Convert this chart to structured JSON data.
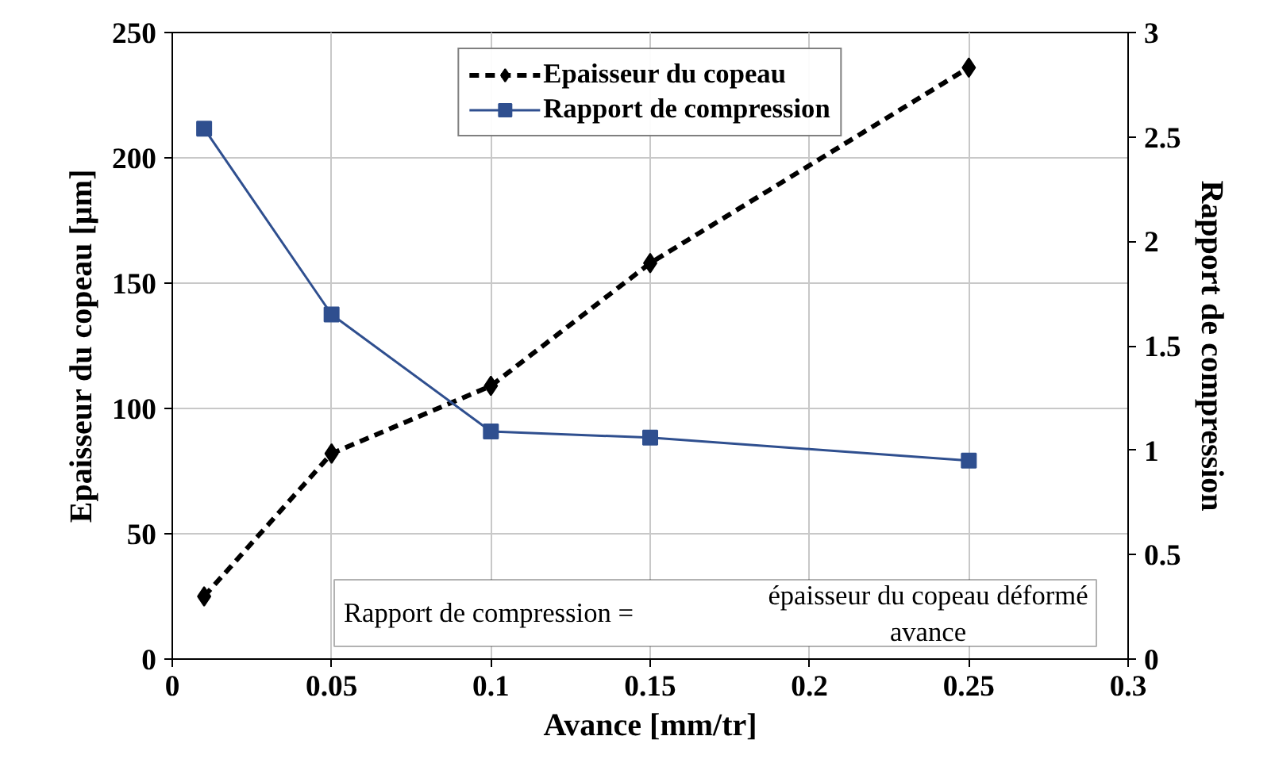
{
  "chart_data": {
    "type": "line",
    "xlabel": "Avance [mm/tr]",
    "ylabel": "Epaisseur du copeau [µm]",
    "y2label": "Rapport de compression",
    "x": [
      0.01,
      0.05,
      0.1,
      0.15,
      0.25
    ],
    "series": [
      {
        "name": "Epaisseur du copeau",
        "color": "#000000",
        "values": [
          25,
          82,
          109,
          158,
          236
        ],
        "marker": "diamond",
        "line_style": "dashed"
      },
      {
        "name": "Rapport de compression",
        "color": "#2f4f8f",
        "values": [
          2.54,
          1.65,
          1.09,
          1.06,
          0.95
        ],
        "marker": "square",
        "line_style": "solid",
        "axis": "y2"
      }
    ],
    "xlim": [
      0,
      0.3
    ],
    "xticks": [
      0,
      0.05,
      0.1,
      0.15,
      0.2,
      0.25,
      0.3
    ],
    "ylim": [
      0,
      250
    ],
    "yticks": [
      0,
      50,
      100,
      150,
      200,
      250
    ],
    "y2lim": [
      0,
      3
    ],
    "y2ticks": [
      0,
      0.5,
      1,
      1.5,
      2,
      2.5,
      3
    ],
    "grid": true,
    "legend": "top",
    "annotations": [
      "Rapport de compression =",
      "épaisseur du copeau déformé",
      "avance"
    ]
  }
}
